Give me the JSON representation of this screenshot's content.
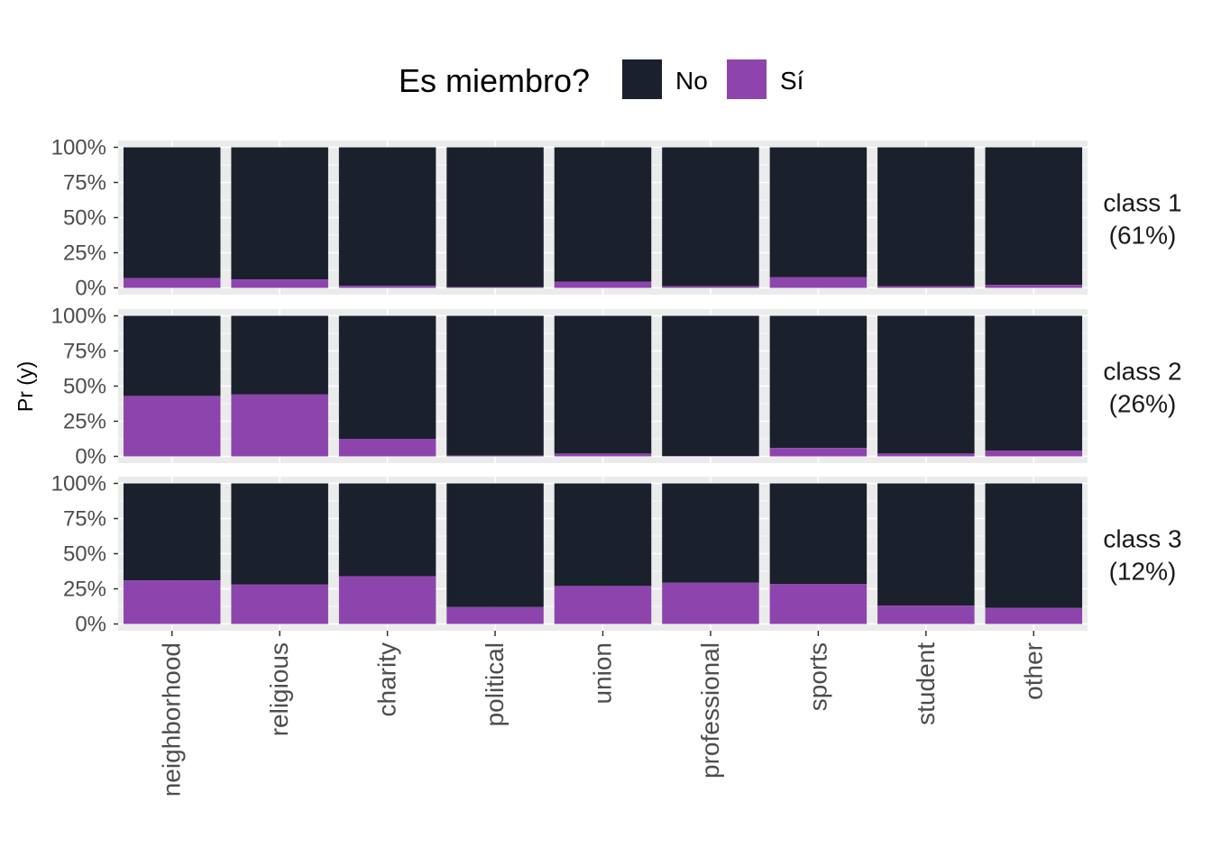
{
  "chart_data": {
    "type": "bar",
    "stacked": "percent",
    "categories": [
      "neighborhood",
      "religious",
      "charity",
      "political",
      "union",
      "professional",
      "sports",
      "student",
      "other"
    ],
    "ylabel": "Pr (y)",
    "xlabel": "",
    "yticks": [
      "0%",
      "25%",
      "50%",
      "75%",
      "100%"
    ],
    "ylim": [
      0,
      1
    ],
    "legend": {
      "title": "Es miembro?",
      "position": "top",
      "entries": [
        {
          "label": "No",
          "color": "#1a202c"
        },
        {
          "label": "Sí",
          "color": "#8e44ad"
        }
      ]
    },
    "panels": [
      {
        "label_line1": "class 1",
        "label_line2": "(61%)",
        "si_values": [
          0.07,
          0.06,
          0.015,
          0.005,
          0.045,
          0.012,
          0.075,
          0.013,
          0.022
        ]
      },
      {
        "label_line1": "class 2",
        "label_line2": "(26%)",
        "si_values": [
          0.43,
          0.44,
          0.125,
          0.005,
          0.02,
          0.003,
          0.06,
          0.02,
          0.04
        ]
      },
      {
        "label_line1": "class 3",
        "label_line2": "(12%)",
        "si_values": [
          0.31,
          0.28,
          0.34,
          0.12,
          0.27,
          0.295,
          0.285,
          0.13,
          0.115
        ]
      }
    ]
  }
}
